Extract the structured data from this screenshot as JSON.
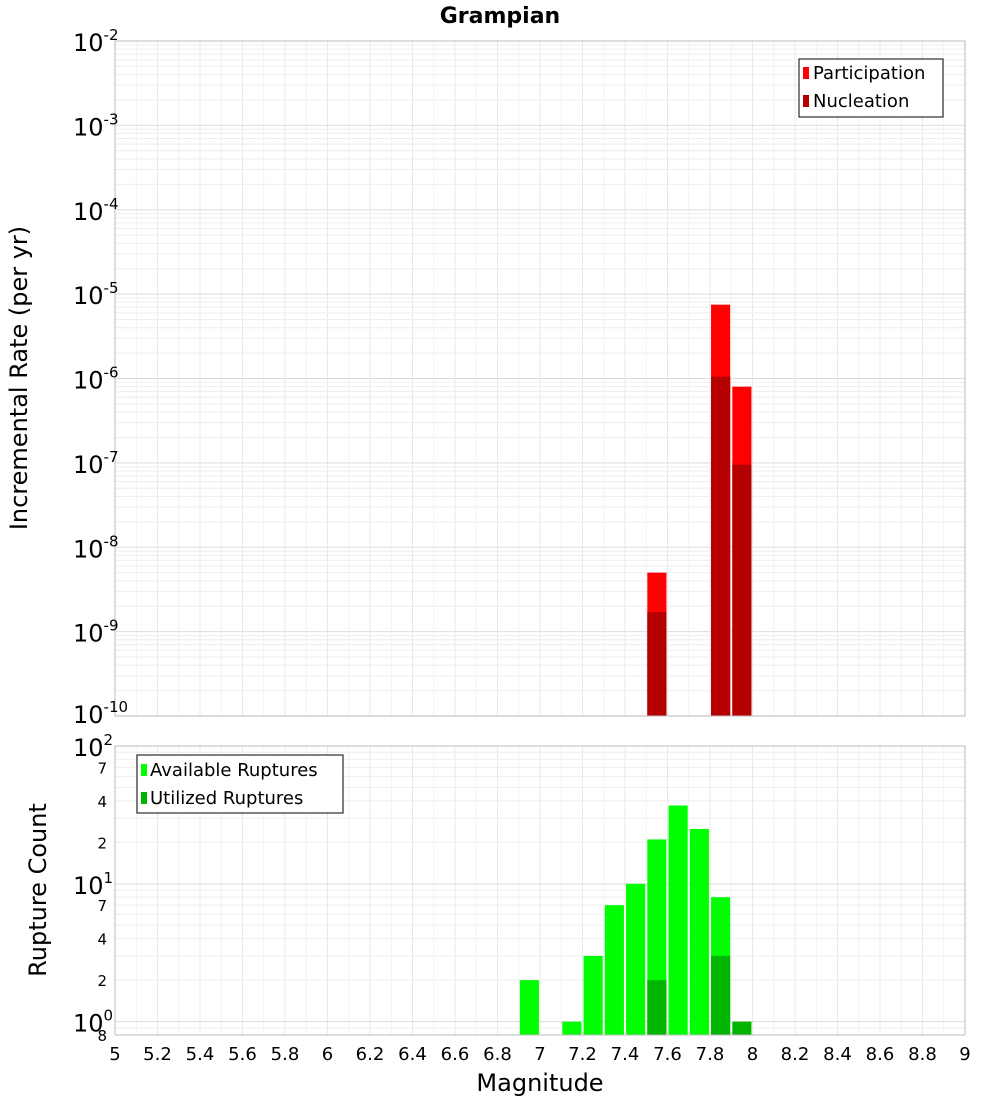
{
  "chart_data": [
    {
      "type": "bar",
      "title": "Grampian",
      "xlabel": "Magnitude",
      "ylabel": "Incremental Rate (per yr)",
      "y_scale": "log",
      "xlim": [
        5,
        9
      ],
      "ylim": [
        1e-10,
        0.01
      ],
      "y_major_ticks": [
        {
          "base": "10",
          "exp": "-2",
          "value": 0.01
        },
        {
          "base": "10",
          "exp": "-3",
          "value": 0.001
        },
        {
          "base": "10",
          "exp": "-4",
          "value": 0.0001
        },
        {
          "base": "10",
          "exp": "-5",
          "value": 1e-05
        },
        {
          "base": "10",
          "exp": "-6",
          "value": 1e-06
        },
        {
          "base": "10",
          "exp": "-7",
          "value": 1e-07
        },
        {
          "base": "10",
          "exp": "-8",
          "value": 1e-08
        },
        {
          "base": "10",
          "exp": "-9",
          "value": 1e-09
        },
        {
          "base": "10",
          "exp": "-10",
          "value": 1e-10
        }
      ],
      "grid": true,
      "legend_position": "top-right",
      "bar_width": 0.09,
      "series": [
        {
          "name": "Participation",
          "color": "#ff0000",
          "points": [
            {
              "x": 7.55,
              "y": 5e-09
            },
            {
              "x": 7.85,
              "y": 7.5e-06
            },
            {
              "x": 7.95,
              "y": 8e-07
            }
          ]
        },
        {
          "name": "Nucleation",
          "color": "#b40000",
          "points": [
            {
              "x": 7.55,
              "y": 1.7e-09
            },
            {
              "x": 7.85,
              "y": 1.05e-06
            },
            {
              "x": 7.95,
              "y": 9.5e-08
            }
          ]
        }
      ]
    },
    {
      "type": "bar",
      "xlabel": "Magnitude",
      "ylabel": "Rupture Count",
      "y_scale": "log",
      "xlim": [
        5,
        9
      ],
      "ylim": [
        0.8,
        100
      ],
      "x_ticks": [
        "5",
        "5.2",
        "5.4",
        "5.6",
        "5.8",
        "6",
        "6.2",
        "6.4",
        "6.6",
        "6.8",
        "7",
        "7.2",
        "7.4",
        "7.6",
        "7.8",
        "8",
        "8.2",
        "8.4",
        "8.6",
        "8.8",
        "9"
      ],
      "y_major_ticks": [
        {
          "base": "10",
          "exp": "2",
          "value": 100
        },
        {
          "base": "10",
          "exp": "1",
          "value": 10
        },
        {
          "base": "10",
          "exp": "0",
          "value": 1
        }
      ],
      "y_minor_ticks": [
        {
          "label": "7",
          "value": 70
        },
        {
          "label": "4",
          "value": 40
        },
        {
          "label": "2",
          "value": 20
        },
        {
          "label": "7",
          "value": 7
        },
        {
          "label": "4",
          "value": 4
        },
        {
          "label": "2",
          "value": 2
        },
        {
          "label": "8",
          "value": 0.8
        }
      ],
      "grid": true,
      "legend_position": "top-left",
      "bar_width": 0.09,
      "series": [
        {
          "name": "Available Ruptures",
          "color": "#00ff00",
          "points": [
            {
              "x": 6.95,
              "y": 2
            },
            {
              "x": 7.15,
              "y": 1
            },
            {
              "x": 7.25,
              "y": 3
            },
            {
              "x": 7.35,
              "y": 7
            },
            {
              "x": 7.45,
              "y": 10
            },
            {
              "x": 7.55,
              "y": 21
            },
            {
              "x": 7.65,
              "y": 37
            },
            {
              "x": 7.75,
              "y": 25
            },
            {
              "x": 7.85,
              "y": 8
            }
          ]
        },
        {
          "name": "Utilized Ruptures",
          "color": "#00b400",
          "points": [
            {
              "x": 7.55,
              "y": 2
            },
            {
              "x": 7.85,
              "y": 3
            },
            {
              "x": 7.95,
              "y": 1
            }
          ]
        }
      ]
    }
  ]
}
